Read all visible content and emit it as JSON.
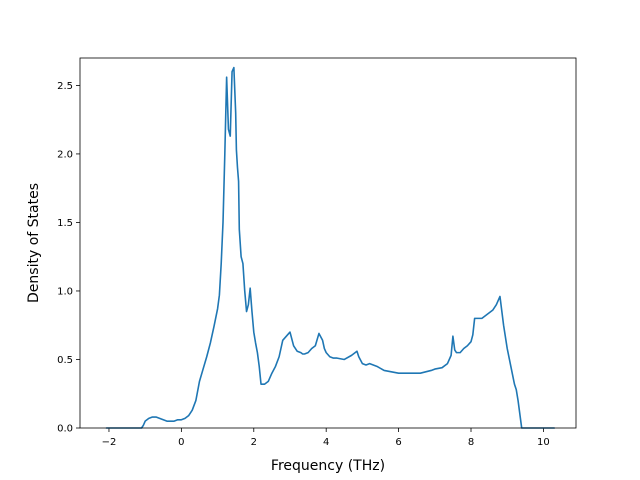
{
  "chart_data": {
    "type": "line",
    "title": "",
    "xlabel": "Frequency (THz)",
    "ylabel": "Density of States",
    "xlim": [
      -2.8,
      10.9
    ],
    "ylim": [
      0.0,
      2.7
    ],
    "grid": false,
    "legend": "none",
    "x_ticks": [
      -2,
      0,
      2,
      4,
      6,
      8,
      10
    ],
    "x_tick_labels": [
      "−2",
      "0",
      "2",
      "4",
      "6",
      "8",
      "10"
    ],
    "y_ticks": [
      0.0,
      0.5,
      1.0,
      1.5,
      2.0,
      2.5
    ],
    "y_tick_labels": [
      "0.0",
      "0.5",
      "1.0",
      "1.5",
      "2.0",
      "2.5"
    ],
    "series": [
      {
        "color": "#1f77b4",
        "x": [
          -2.07,
          -1.6,
          -1.1,
          -1.05,
          -1.0,
          -0.9,
          -0.8,
          -0.7,
          -0.6,
          -0.5,
          -0.4,
          -0.3,
          -0.2,
          -0.1,
          0.0,
          0.1,
          0.2,
          0.3,
          0.4,
          0.5,
          0.6,
          0.7,
          0.8,
          0.9,
          1.0,
          1.05,
          1.1,
          1.15,
          1.2,
          1.25,
          1.3,
          1.35,
          1.4,
          1.45,
          1.5,
          1.52,
          1.55,
          1.58,
          1.6,
          1.65,
          1.7,
          1.75,
          1.8,
          1.85,
          1.9,
          1.95,
          2.0,
          2.05,
          2.1,
          2.15,
          2.2,
          2.3,
          2.4,
          2.5,
          2.6,
          2.7,
          2.8,
          2.9,
          3.0,
          3.1,
          3.2,
          3.3,
          3.35,
          3.4,
          3.5,
          3.6,
          3.7,
          3.8,
          3.9,
          3.95,
          4.0,
          4.1,
          4.2,
          4.3,
          4.5,
          4.7,
          4.85,
          4.9,
          5.0,
          5.1,
          5.2,
          5.4,
          5.6,
          5.8,
          6.0,
          6.3,
          6.6,
          6.9,
          7.0,
          7.2,
          7.35,
          7.45,
          7.5,
          7.55,
          7.6,
          7.7,
          7.8,
          7.9,
          8.0,
          8.05,
          8.1,
          8.2,
          8.3,
          8.4,
          8.5,
          8.6,
          8.7,
          8.75,
          8.8,
          8.9,
          9.0,
          9.1,
          9.2,
          9.25,
          9.3,
          9.4,
          10.0,
          10.3
        ],
        "y": [
          0.0,
          0.0,
          0.0,
          0.02,
          0.05,
          0.07,
          0.08,
          0.08,
          0.07,
          0.06,
          0.05,
          0.05,
          0.05,
          0.06,
          0.06,
          0.07,
          0.09,
          0.13,
          0.2,
          0.34,
          0.43,
          0.52,
          0.62,
          0.74,
          0.87,
          0.97,
          1.2,
          1.5,
          2.0,
          2.56,
          2.18,
          2.13,
          2.6,
          2.63,
          2.3,
          2.03,
          1.9,
          1.8,
          1.45,
          1.25,
          1.2,
          1.0,
          0.85,
          0.9,
          1.02,
          0.85,
          0.7,
          0.62,
          0.55,
          0.45,
          0.32,
          0.32,
          0.34,
          0.4,
          0.45,
          0.52,
          0.64,
          0.67,
          0.7,
          0.6,
          0.56,
          0.55,
          0.54,
          0.54,
          0.55,
          0.58,
          0.6,
          0.69,
          0.64,
          0.58,
          0.55,
          0.52,
          0.51,
          0.51,
          0.5,
          0.53,
          0.56,
          0.52,
          0.47,
          0.46,
          0.47,
          0.45,
          0.42,
          0.41,
          0.4,
          0.4,
          0.4,
          0.42,
          0.43,
          0.44,
          0.47,
          0.53,
          0.67,
          0.57,
          0.55,
          0.55,
          0.58,
          0.6,
          0.63,
          0.68,
          0.8,
          0.8,
          0.8,
          0.82,
          0.84,
          0.86,
          0.9,
          0.93,
          0.96,
          0.75,
          0.58,
          0.45,
          0.32,
          0.28,
          0.2,
          0.0,
          0.0,
          0.0
        ]
      }
    ]
  }
}
